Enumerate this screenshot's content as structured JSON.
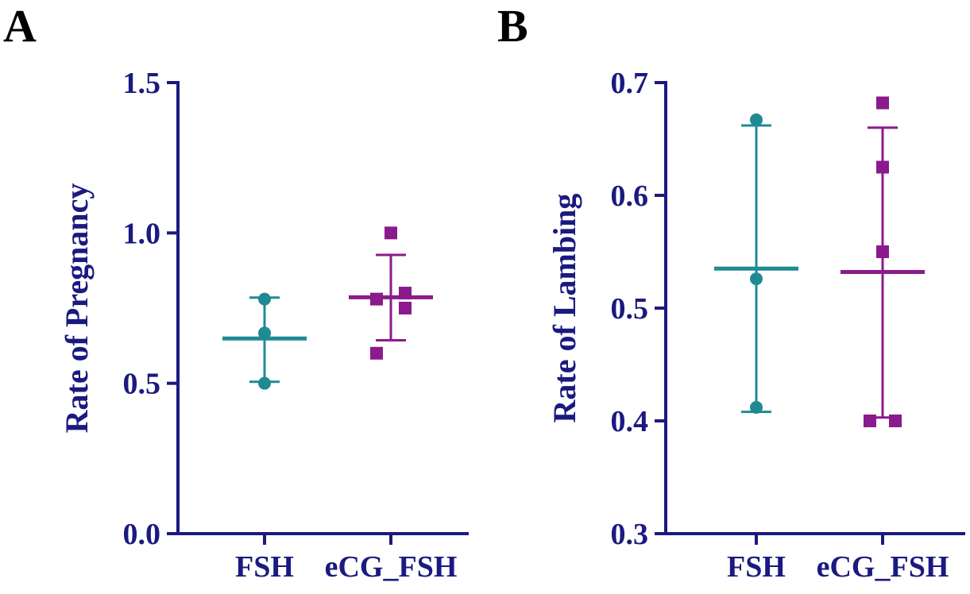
{
  "colors": {
    "axis": "#1a1a80",
    "FSH": "#1f8a94",
    "eCG_FSH": "#8b1a8c"
  },
  "chart_data": [
    {
      "type": "scatter",
      "panel": "A",
      "ylabel": "Rate of Pregnancy",
      "xlabel": "",
      "ylim": [
        0,
        1.5
      ],
      "yticks": [
        "0.0",
        "0.5",
        "1.0",
        "1.5"
      ],
      "categories": [
        "FSH",
        "eCG_FSH"
      ],
      "series": [
        {
          "category": "FSH",
          "marker": "circle",
          "color": "#1f8a94",
          "points": [
            0.78,
            0.667,
            0.5
          ],
          "mean": 0.649,
          "sd_low": 0.505,
          "sd_high": 0.785
        },
        {
          "category": "eCG_FSH",
          "marker": "square",
          "color": "#8b1a8c",
          "points": [
            1.0,
            0.78,
            0.8,
            0.75,
            0.6
          ],
          "mean": 0.786,
          "sd_low": 0.643,
          "sd_high": 0.927
        }
      ]
    },
    {
      "type": "scatter",
      "panel": "B",
      "ylabel": "Rate of Lambing",
      "xlabel": "",
      "ylim": [
        0.3,
        0.7
      ],
      "yticks": [
        "0.3",
        "0.4",
        "0.5",
        "0.6",
        "0.7"
      ],
      "categories": [
        "FSH",
        "eCG_FSH"
      ],
      "series": [
        {
          "category": "FSH",
          "marker": "circle",
          "color": "#1f8a94",
          "points": [
            0.667,
            0.526,
            0.412
          ],
          "mean": 0.535,
          "sd_low": 0.408,
          "sd_high": 0.662
        },
        {
          "category": "eCG_FSH",
          "marker": "square",
          "color": "#8b1a8c",
          "points": [
            0.682,
            0.625,
            0.55,
            0.4,
            0.4
          ],
          "mean": 0.532,
          "sd_low": 0.403,
          "sd_high": 0.66
        }
      ]
    }
  ]
}
